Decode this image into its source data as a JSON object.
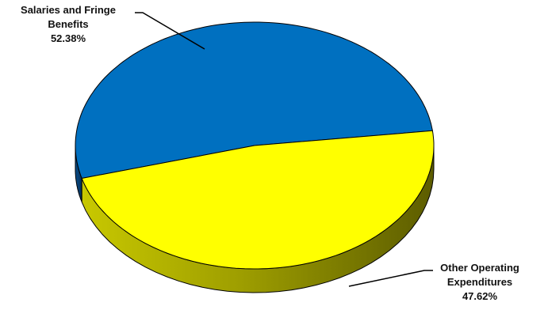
{
  "chart_data": {
    "type": "pie",
    "title": "",
    "slices": [
      {
        "label_line1": "Salaries and Fringe",
        "label_line2": "Benefits",
        "value_label": "52.38%",
        "value": 52.38,
        "color": "#0070C0",
        "side_color": "#003A70"
      },
      {
        "label_line1": "Other Operating",
        "label_line2": "Expenditures",
        "value_label": "47.62%",
        "value": 47.62,
        "color": "#FFFF00",
        "side_color": "#8A8A00"
      }
    ],
    "legend": "none",
    "style": "3d-pie"
  }
}
